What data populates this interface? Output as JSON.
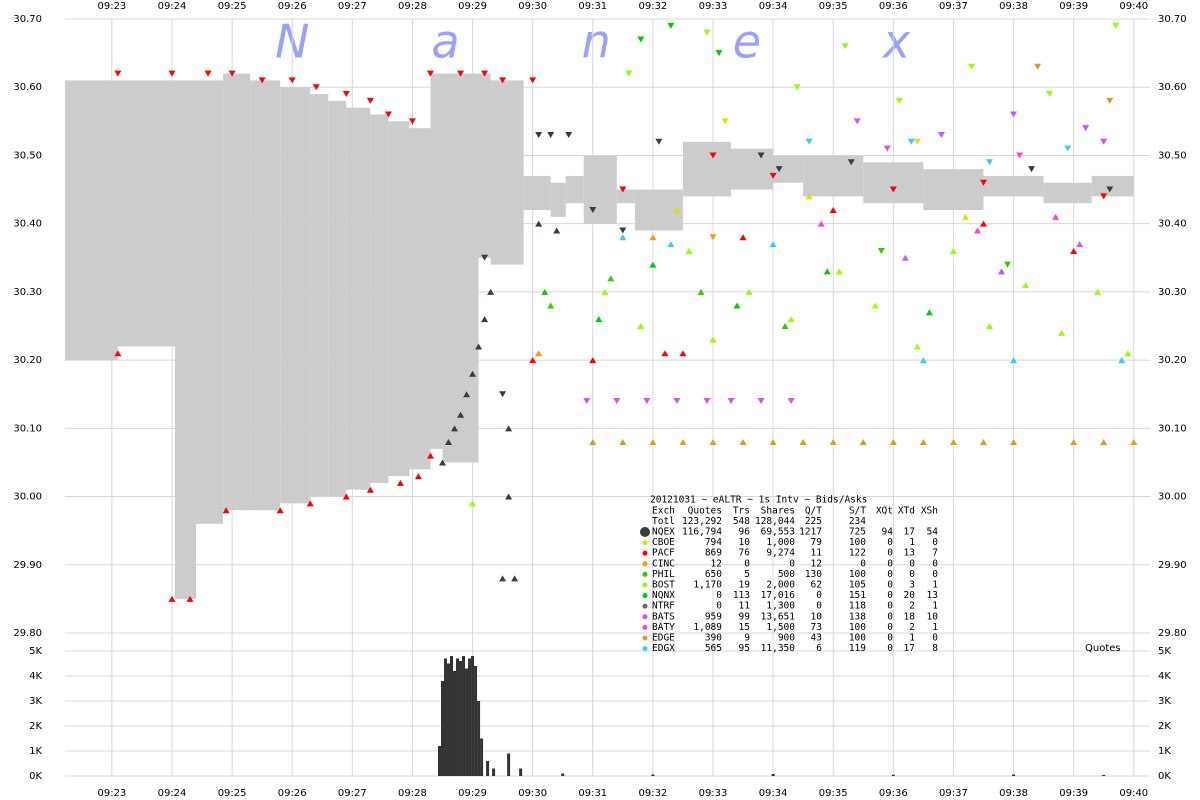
{
  "chart_data": {
    "type": "quotes",
    "watermark": "Nanex",
    "table_title": "20121031 ~ eALTR ~ 1s Intv ~ Bids/Asks",
    "columns": [
      "Exch",
      "Quotes",
      "Trs",
      "Shares",
      "Q/T",
      "S/T",
      "XQt",
      "XTd",
      "XSh"
    ],
    "total": {
      "name": "Totl",
      "stats": [
        "123,292",
        "548",
        "128,044",
        "225",
        "234"
      ]
    },
    "xlim": [
      562.22,
      580.27
    ],
    "xticks": [
      {
        "value": 563,
        "label": "09:23"
      },
      {
        "value": 564,
        "label": "09:24"
      },
      {
        "value": 565,
        "label": "09:25"
      },
      {
        "value": 566,
        "label": "09:26"
      },
      {
        "value": 567,
        "label": "09:27"
      },
      {
        "value": 568,
        "label": "09:28"
      },
      {
        "value": 569,
        "label": "09:29"
      },
      {
        "value": 570,
        "label": "09:30"
      },
      {
        "value": 571,
        "label": "09:31"
      },
      {
        "value": 572,
        "label": "09:32"
      },
      {
        "value": 573,
        "label": "09:33"
      },
      {
        "value": 574,
        "label": "09:34"
      },
      {
        "value": 575,
        "label": "09:35"
      },
      {
        "value": 576,
        "label": "09:36"
      },
      {
        "value": 577,
        "label": "09:37"
      },
      {
        "value": 578,
        "label": "09:38"
      },
      {
        "value": 579,
        "label": "09:39"
      },
      {
        "value": 580,
        "label": "09:40"
      }
    ],
    "ylim": [
      29.8,
      30.7
    ],
    "yticks": [
      {
        "value": 30.7,
        "label": "30.70"
      },
      {
        "value": 30.6,
        "label": "30.60"
      },
      {
        "value": 30.5,
        "label": "30.50"
      },
      {
        "value": 30.4,
        "label": "30.40"
      },
      {
        "value": 30.3,
        "label": "30.30"
      },
      {
        "value": 30.2,
        "label": "30.20"
      },
      {
        "value": 30.1,
        "label": "30.10"
      },
      {
        "value": 30.0,
        "label": "30.00"
      },
      {
        "value": 29.9,
        "label": "29.90"
      },
      {
        "value": 29.8,
        "label": "29.80"
      }
    ],
    "grid": true,
    "spread": {
      "color": "#cccccc",
      "edges": [
        562.22,
        563.1,
        564.05,
        564.4,
        564.85,
        565.3,
        565.8,
        566.3,
        566.6,
        566.9,
        567.3,
        567.6,
        567.95,
        568.3,
        568.5,
        569.1,
        569.3,
        569.85,
        570.3,
        570.55,
        570.85,
        571.4,
        571.7,
        572.5,
        573.3,
        574.0,
        574.5,
        575.5,
        576.5,
        577.5,
        578.5,
        579.3,
        580.0
      ],
      "asks": [
        30.61,
        30.61,
        30.61,
        30.61,
        30.62,
        30.61,
        30.6,
        30.59,
        30.58,
        30.57,
        30.56,
        30.55,
        30.54,
        30.62,
        30.62,
        30.62,
        30.61,
        30.47,
        30.46,
        30.47,
        30.5,
        30.45,
        30.45,
        30.52,
        30.51,
        30.5,
        30.5,
        30.49,
        30.48,
        30.47,
        30.46,
        30.47
      ],
      "bids": [
        30.2,
        30.22,
        29.85,
        29.96,
        29.98,
        29.98,
        29.99,
        30.0,
        30.0,
        30.01,
        30.02,
        30.03,
        30.04,
        30.07,
        30.05,
        30.35,
        30.34,
        30.42,
        30.41,
        30.43,
        30.4,
        30.43,
        30.39,
        30.44,
        30.45,
        30.46,
        30.44,
        30.43,
        30.42,
        30.44,
        30.43,
        30.44
      ]
    },
    "series": [
      {
        "name": "NQEX",
        "color": "#333f3f",
        "stats": [
          "116,794",
          "96",
          "69,553",
          "1217",
          "725",
          "94",
          "17",
          "54"
        ],
        "bid_x": [
          568.5,
          568.6,
          568.7,
          568.8,
          568.9,
          569.0,
          569.1,
          569.2,
          569.3,
          569.5,
          569.6,
          569.6,
          569.7,
          570.1,
          570.4
        ],
        "bids": [
          30.05,
          30.08,
          30.1,
          30.12,
          30.15,
          30.18,
          30.22,
          30.26,
          30.3,
          29.88,
          30.0,
          30.1,
          29.88,
          30.4,
          30.39
        ],
        "ask_x": [
          569.2,
          569.5,
          570.1,
          570.3,
          570.6,
          571.0,
          571.5,
          572.1,
          573.8,
          574.1,
          575.3,
          578.3,
          579.6
        ],
        "asks": [
          30.35,
          30.15,
          30.53,
          30.53,
          30.53,
          30.42,
          30.39,
          30.52,
          30.5,
          30.48,
          30.49,
          30.48,
          30.45
        ]
      },
      {
        "name": "CBOE",
        "color": "#e0e000",
        "stats": [
          "794",
          "10",
          "1,000",
          "79",
          "100",
          "0",
          "1",
          "0"
        ],
        "bid_x": [
          572.4,
          574.6,
          577.2
        ],
        "bids": [
          30.42,
          30.44,
          30.41
        ],
        "ask_x": [
          573.2,
          576.4
        ],
        "asks": [
          30.55,
          30.52
        ]
      },
      {
        "name": "PACF",
        "color": "#ff0000",
        "stats": [
          "869",
          "76",
          "9,274",
          "11",
          "122",
          "0",
          "13",
          "7"
        ],
        "bid_x": [
          563.1,
          564.0,
          564.3,
          564.9,
          565.8,
          566.3,
          566.9,
          567.3,
          567.8,
          568.1,
          568.3,
          570.0,
          571.0,
          572.2,
          572.5,
          573.5,
          575.0,
          577.5,
          579.0
        ],
        "bids": [
          30.21,
          29.85,
          29.85,
          29.98,
          29.98,
          29.99,
          30.0,
          30.01,
          30.02,
          30.03,
          30.06,
          30.2,
          30.2,
          30.21,
          30.21,
          30.38,
          30.42,
          30.4,
          30.36
        ],
        "ask_x": [
          563.1,
          564.0,
          564.6,
          565.0,
          565.5,
          566.0,
          566.4,
          566.9,
          567.3,
          567.6,
          568.0,
          568.3,
          568.8,
          569.2,
          569.5,
          570.0,
          571.5,
          573.0,
          574.0,
          576.0,
          577.5,
          579.5
        ],
        "asks": [
          30.62,
          30.62,
          30.62,
          30.62,
          30.61,
          30.61,
          30.6,
          30.59,
          30.58,
          30.56,
          30.55,
          30.62,
          30.62,
          30.62,
          30.61,
          30.61,
          30.45,
          30.5,
          30.47,
          30.45,
          30.46,
          30.44
        ]
      },
      {
        "name": "CINC",
        "color": "#ff9900",
        "stats": [
          "12",
          "0",
          "0",
          "12",
          "0",
          "0",
          "0",
          "0"
        ],
        "bid_x": [
          570.1,
          572.0
        ],
        "bids": [
          30.21,
          30.38
        ],
        "ask_x": [
          573.0
        ],
        "asks": [
          30.38
        ]
      },
      {
        "name": "PHIL",
        "color": "#33cc00",
        "stats": [
          "650",
          "5",
          "500",
          "130",
          "100",
          "0",
          "0",
          "0"
        ],
        "bid_x": [
          570.3,
          571.3,
          572.8,
          574.2
        ],
        "bids": [
          30.28,
          30.32,
          30.3,
          30.25
        ],
        "ask_x": [
          575.8,
          577.9
        ],
        "asks": [
          30.36,
          30.34
        ]
      },
      {
        "name": "BOST",
        "color": "#99ff00",
        "stats": [
          "1,170",
          "19",
          "2,000",
          "62",
          "105",
          "0",
          "3",
          "1"
        ],
        "bid_x": [
          569.0,
          571.2,
          571.8,
          572.6,
          573.0,
          573.6,
          574.3,
          575.1,
          575.7,
          576.4,
          577.0,
          577.6,
          578.2,
          578.8,
          579.4,
          579.9
        ],
        "bids": [
          29.99,
          30.3,
          30.25,
          30.36,
          30.23,
          30.3,
          30.26,
          30.33,
          30.28,
          30.22,
          30.36,
          30.25,
          30.31,
          30.24,
          30.3,
          30.21
        ],
        "ask_x": [
          571.6,
          572.9,
          574.4,
          575.2,
          576.1,
          577.3,
          578.6,
          579.7
        ],
        "asks": [
          30.62,
          30.68,
          30.6,
          30.66,
          30.58,
          30.63,
          30.59,
          30.69
        ]
      },
      {
        "name": "NQNX",
        "color": "#00cc00",
        "stats": [
          "0",
          "113",
          "17,016",
          "0",
          "151",
          "0",
          "20",
          "13"
        ],
        "bid_x": [
          570.2,
          571.1,
          572.0,
          573.4,
          574.9,
          576.6
        ],
        "bids": [
          30.3,
          30.26,
          30.34,
          30.28,
          30.33,
          30.27
        ],
        "ask_x": [
          571.8,
          572.3,
          573.1
        ],
        "asks": [
          30.67,
          30.69,
          30.65
        ]
      },
      {
        "name": "NTRF",
        "color": "#6a6a6a",
        "stats": [
          "0",
          "11",
          "1,300",
          "0",
          "118",
          "0",
          "2",
          "1"
        ],
        "bid_x": [],
        "bids": [],
        "ask_x": [],
        "asks": []
      },
      {
        "name": "BATS",
        "color": "#cc55ff",
        "stats": [
          "959",
          "99",
          "13,651",
          "10",
          "138",
          "0",
          "18",
          "10"
        ],
        "bid_x": [
          576.2,
          577.8,
          579.1
        ],
        "bids": [
          30.35,
          30.33,
          30.37
        ],
        "ask_x": [
          570.9,
          571.4,
          571.9,
          572.4,
          572.9,
          573.3,
          573.8,
          574.3,
          575.4,
          576.8,
          578.0,
          579.2
        ],
        "asks": [
          30.14,
          30.14,
          30.14,
          30.14,
          30.14,
          30.14,
          30.14,
          30.14,
          30.55,
          30.53,
          30.56,
          30.54
        ]
      },
      {
        "name": "BATY",
        "color": "#ff44cc",
        "stats": [
          "1,089",
          "15",
          "1,500",
          "73",
          "100",
          "0",
          "2",
          "1"
        ],
        "bid_x": [
          574.8,
          577.4,
          578.7
        ],
        "bids": [
          30.4,
          30.39,
          30.41
        ],
        "ask_x": [
          575.9,
          578.1,
          579.5
        ],
        "asks": [
          30.51,
          30.5,
          30.52
        ]
      },
      {
        "name": "EDGE",
        "color": "#d4a020",
        "stats": [
          "390",
          "9",
          "900",
          "43",
          "100",
          "0",
          "1",
          "0"
        ],
        "bid_x": [
          571.0,
          571.5,
          572.0,
          572.5,
          573.0,
          573.5,
          574.0,
          574.5,
          575.0,
          575.5,
          576.0,
          576.5,
          577.0,
          577.5,
          578.0,
          579.0,
          579.5,
          580.0
        ],
        "bids": [
          30.08,
          30.08,
          30.08,
          30.08,
          30.08,
          30.08,
          30.08,
          30.08,
          30.08,
          30.08,
          30.08,
          30.08,
          30.08,
          30.08,
          30.08,
          30.08,
          30.08,
          30.08
        ],
        "ask_x": [
          578.4,
          579.6
        ],
        "asks": [
          30.63,
          30.58
        ]
      },
      {
        "name": "EDGX",
        "color": "#33ccff",
        "stats": [
          "565",
          "95",
          "11,350",
          "6",
          "119",
          "0",
          "17",
          "8"
        ],
        "bid_x": [
          571.5,
          572.3,
          574.0,
          576.5,
          578.0,
          579.8
        ],
        "bids": [
          30.38,
          30.37,
          30.37,
          30.2,
          30.2,
          30.2
        ],
        "ask_x": [
          574.6,
          576.3,
          577.6,
          578.9
        ],
        "asks": [
          30.52,
          30.52,
          30.49,
          30.51
        ]
      }
    ],
    "volume": {
      "label": "Quotes",
      "color": "#333333",
      "ylim": [
        0,
        5000
      ],
      "yticks": [
        {
          "value": 5000,
          "label": "5K"
        },
        {
          "value": 4000,
          "label": "4K"
        },
        {
          "value": 3000,
          "label": "3K"
        },
        {
          "value": 2000,
          "label": "2K"
        },
        {
          "value": 1000,
          "label": "1K"
        },
        {
          "value": 0,
          "label": "0K"
        }
      ],
      "x": [
        568.45,
        568.5,
        568.55,
        568.6,
        568.65,
        568.7,
        568.75,
        568.8,
        568.85,
        568.9,
        568.95,
        569.0,
        569.05,
        569.1,
        569.15,
        569.25,
        569.35,
        569.6,
        569.8,
        570.5,
        572.0,
        574.0,
        576.0,
        578.0,
        579.5
      ],
      "values": [
        1200,
        3800,
        4700,
        4500,
        4800,
        4200,
        4700,
        4600,
        4800,
        4300,
        4700,
        4800,
        4400,
        3000,
        1500,
        600,
        300,
        900,
        300,
        100,
        60,
        80,
        50,
        60,
        40
      ]
    }
  }
}
